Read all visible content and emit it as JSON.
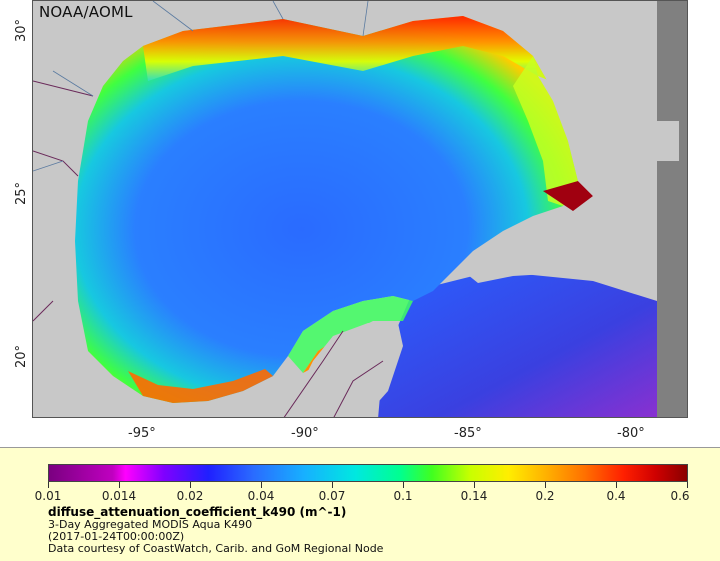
{
  "map": {
    "watermark": "NOAA/AOML",
    "lon_labels": [
      "-95°",
      "-90°",
      "-85°",
      "-80°"
    ],
    "lat_labels": [
      "30°",
      "25°",
      "20°"
    ]
  },
  "legend": {
    "colorbar_ticks": [
      "0.01",
      "0.014",
      "0.02",
      "0.04",
      "0.07",
      "0.1",
      "0.14",
      "0.2",
      "0.4",
      "0.6"
    ],
    "variable": "diffuse_attenuation_coefficient_k490 (m^-1)",
    "line1": "3-Day Aggregated MODIS Aqua K490",
    "line2": "(2017-01-24T00:00:00Z)",
    "line3": "Data courtesy of CoastWatch, Carib. and GoM Regional Node"
  },
  "colors": {
    "land": "#c8c8c8",
    "no_data": "#808080",
    "legend_bg": "#ffffcc",
    "borders": "#6a2a5a",
    "rivers": "#5a7aa0"
  }
}
